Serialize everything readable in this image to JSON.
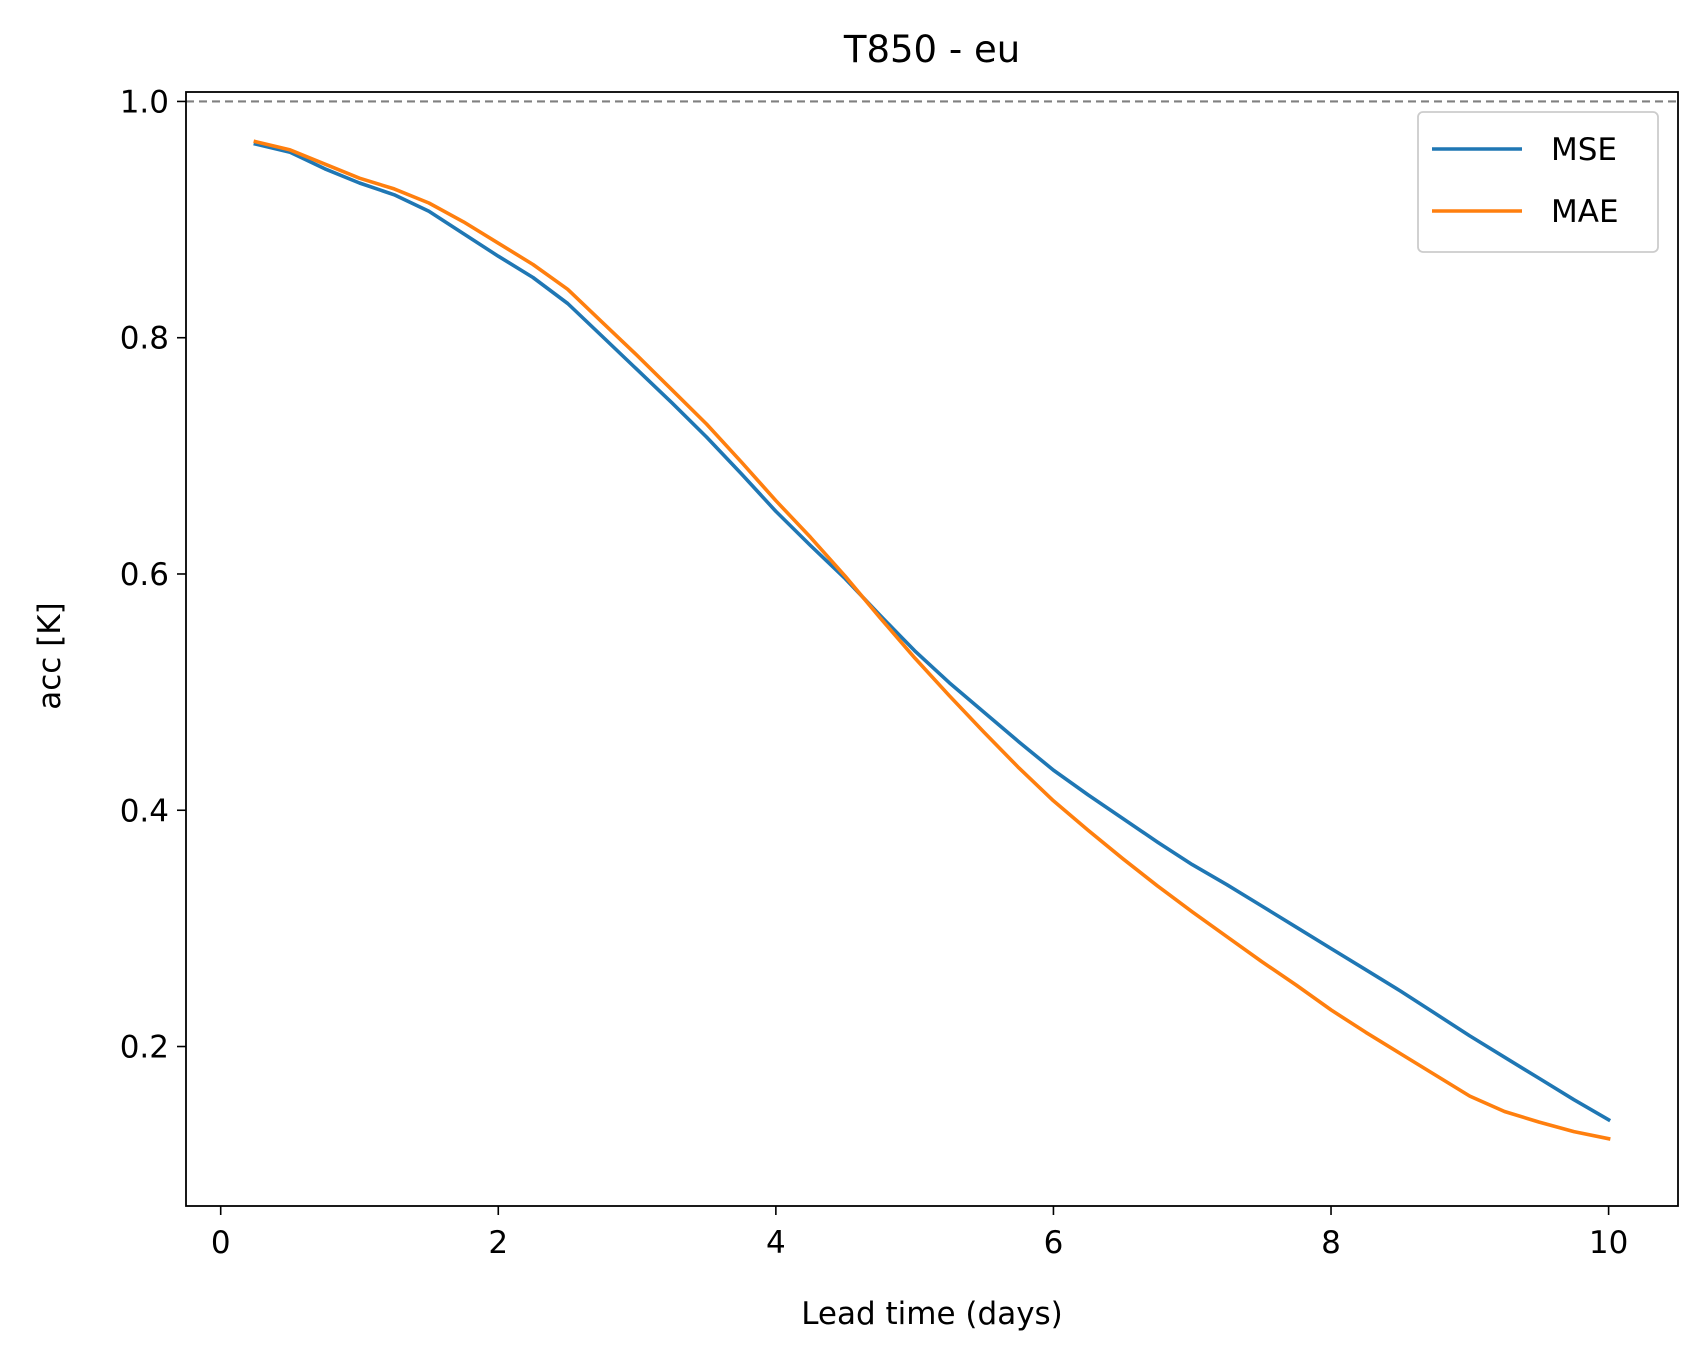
{
  "chart_data": {
    "type": "line",
    "title": "T850 - eu",
    "xlabel": "Lead time (days)",
    "ylabel": "acc [K]",
    "xlim": [
      -0.25,
      10.5
    ],
    "ylim": [
      0.065,
      1.008
    ],
    "xticks": [
      0,
      2,
      4,
      6,
      8,
      10
    ],
    "xtick_labels": [
      "0",
      "2",
      "4",
      "6",
      "8",
      "10"
    ],
    "yticks": [
      0.2,
      0.4,
      0.6,
      0.8,
      1.0
    ],
    "ytick_labels": [
      "0.2",
      "0.4",
      "0.6",
      "0.8",
      "1.0"
    ],
    "reference_line": 1.0,
    "grid": false,
    "legend_position": "top-right",
    "x": [
      0.25,
      0.5,
      0.75,
      1.0,
      1.25,
      1.5,
      1.75,
      2.0,
      2.25,
      2.5,
      2.75,
      3.0,
      3.25,
      3.5,
      3.75,
      4.0,
      4.25,
      4.5,
      4.75,
      5.0,
      5.25,
      5.5,
      5.75,
      6.0,
      6.25,
      6.5,
      6.75,
      7.0,
      7.25,
      7.5,
      7.75,
      8.0,
      8.25,
      8.5,
      8.75,
      9.0,
      9.25,
      9.5,
      9.75,
      10.0
    ],
    "series": [
      {
        "name": "MSE",
        "color": "#1f77b4",
        "values": [
          0.964,
          0.957,
          0.943,
          0.931,
          0.921,
          0.907,
          0.888,
          0.869,
          0.851,
          0.829,
          0.801,
          0.773,
          0.745,
          0.716,
          0.685,
          0.653,
          0.624,
          0.596,
          0.565,
          0.535,
          0.508,
          0.483,
          0.458,
          0.434,
          0.413,
          0.393,
          0.373,
          0.354,
          0.337,
          0.319,
          0.301,
          0.283,
          0.265,
          0.247,
          0.228,
          0.209,
          0.191,
          0.173,
          0.155,
          0.138
        ]
      },
      {
        "name": "MAE",
        "color": "#ff7f0e",
        "values": [
          0.966,
          0.959,
          0.947,
          0.935,
          0.926,
          0.914,
          0.898,
          0.88,
          0.862,
          0.841,
          0.813,
          0.785,
          0.756,
          0.727,
          0.695,
          0.662,
          0.631,
          0.598,
          0.563,
          0.529,
          0.497,
          0.466,
          0.436,
          0.408,
          0.383,
          0.359,
          0.336,
          0.314,
          0.293,
          0.272,
          0.252,
          0.231,
          0.212,
          0.194,
          0.176,
          0.158,
          0.145,
          0.136,
          0.128,
          0.122
        ]
      }
    ]
  }
}
